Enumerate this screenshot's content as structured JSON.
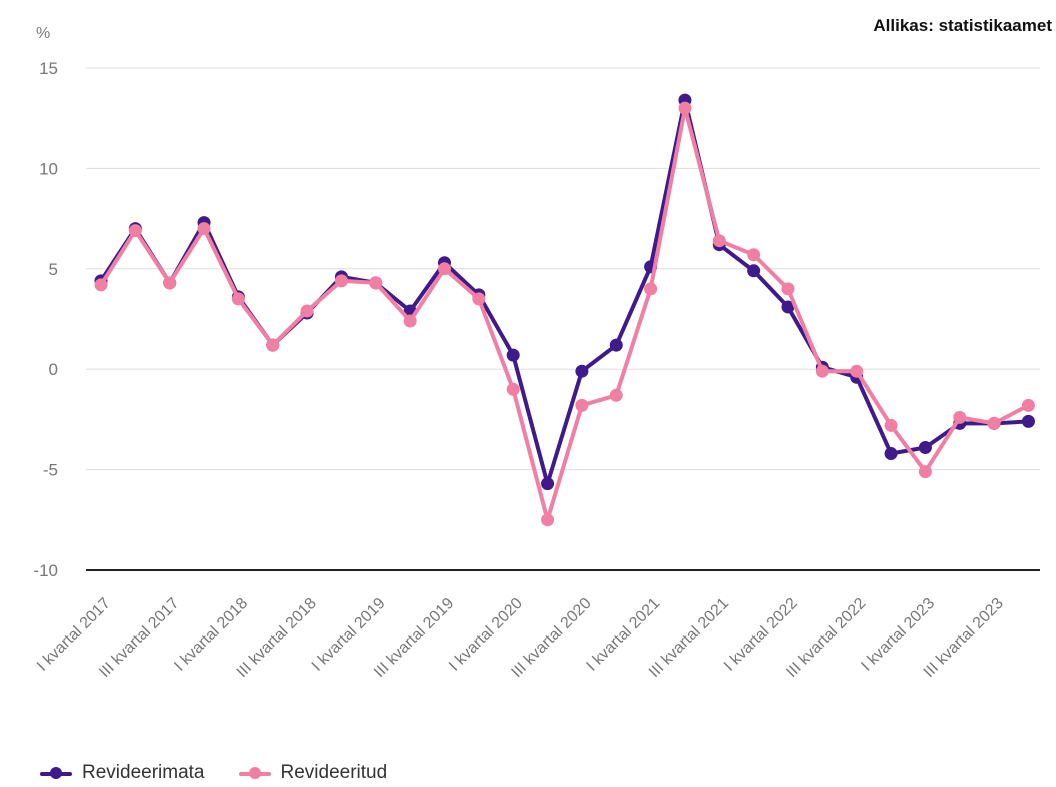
{
  "source": "Allikas: statistikaamet",
  "chart_data": {
    "type": "line",
    "ylabel": "%",
    "ylim": [
      -10,
      15
    ],
    "yticks": [
      15,
      10,
      5,
      0,
      -5,
      -10
    ],
    "grid": true,
    "legend_position": "bottom-left",
    "x": [
      "I kvartal 2017",
      "II kvartal 2017",
      "III kvartal 2017",
      "IV kvartal 2017",
      "I kvartal 2018",
      "II kvartal 2018",
      "III kvartal 2018",
      "IV kvartal 2018",
      "I kvartal 2019",
      "II kvartal 2019",
      "III kvartal 2019",
      "IV kvartal 2019",
      "I kvartal 2020",
      "II kvartal 2020",
      "III kvartal 2020",
      "IV kvartal 2020",
      "I kvartal 2021",
      "II kvartal 2021",
      "III kvartal 2021",
      "IV kvartal 2021",
      "I kvartal 2022",
      "II kvartal 2022",
      "III kvartal 2022",
      "IV kvartal 2022",
      "I kvartal 2023",
      "II kvartal 2023",
      "III kvartal 2023",
      "IV kvartal 2023"
    ],
    "x_tick_labels": [
      "I kvartal 2017",
      "III kvartal 2017",
      "I kvartal 2018",
      "III kvartal 2018",
      "I kvartal 2019",
      "III kvartal 2019",
      "I kvartal 2020",
      "III kvartal 2020",
      "I kvartal 2021",
      "III kvartal 2021",
      "I kvartal 2022",
      "III kvartal 2022",
      "I kvartal 2023",
      "III kvartal 2023"
    ],
    "series": [
      {
        "name": "Revideerimata",
        "color": "#3f1a8a",
        "values": [
          4.4,
          7.0,
          4.3,
          7.3,
          3.6,
          1.2,
          2.8,
          4.6,
          4.3,
          2.9,
          5.3,
          3.7,
          0.7,
          -5.7,
          -0.1,
          1.2,
          5.1,
          13.4,
          6.2,
          4.9,
          3.1,
          0.1,
          -0.4,
          -4.2,
          -3.9,
          -2.7,
          -2.7,
          -2.6
        ]
      },
      {
        "name": "Revideeritud",
        "color": "#f07fa3",
        "values": [
          4.2,
          6.9,
          4.3,
          7.0,
          3.5,
          1.2,
          2.9,
          4.4,
          4.3,
          2.4,
          5.0,
          3.5,
          -1.0,
          -7.5,
          -1.8,
          -1.3,
          4.0,
          13.0,
          6.4,
          5.7,
          4.0,
          -0.1,
          -0.1,
          -2.8,
          -5.1,
          -2.4,
          -2.7,
          -1.8
        ]
      }
    ]
  }
}
